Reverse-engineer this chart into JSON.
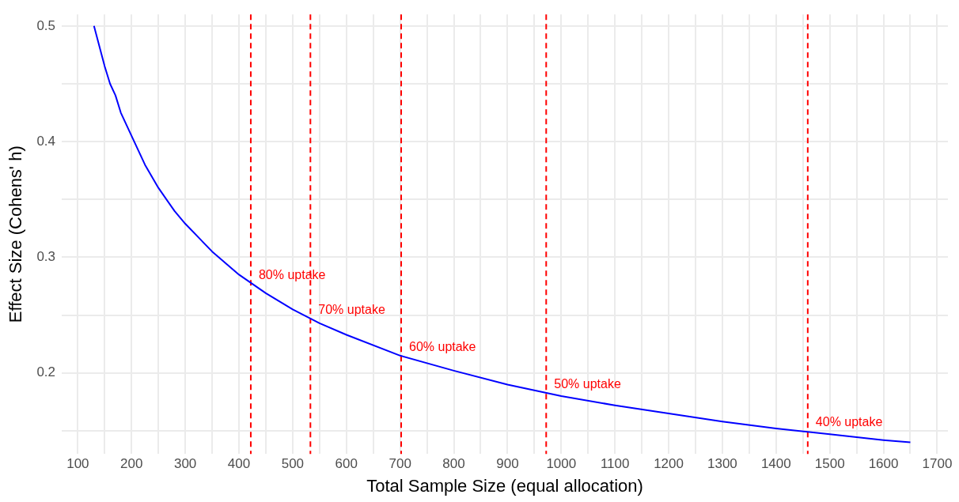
{
  "chart_data": {
    "type": "line",
    "xlabel": "Total Sample Size (equal allocation)",
    "ylabel": "Effect Size (Cohens' h)",
    "x": [
      130,
      150,
      160,
      170,
      180,
      200,
      225,
      250,
      280,
      300,
      350,
      400,
      450,
      500,
      550,
      600,
      700,
      800,
      900,
      1000,
      1100,
      1200,
      1300,
      1400,
      1500,
      1600,
      1650
    ],
    "series": [
      {
        "color": "#0000ff",
        "values": [
          0.5,
          0.465,
          0.45,
          0.44,
          0.425,
          0.405,
          0.38,
          0.36,
          0.34,
          0.329,
          0.305,
          0.285,
          0.269,
          0.255,
          0.243,
          0.233,
          0.215,
          0.202,
          0.19,
          0.18,
          0.172,
          0.165,
          0.158,
          0.152,
          0.147,
          0.142,
          0.14
        ]
      }
    ],
    "xlim": [
      70,
      1720
    ],
    "ylim": [
      0.13,
      0.51
    ],
    "xticks": [
      100,
      {
        "value": 150,
        "label": null
      },
      200,
      {
        "value": 250,
        "label": null
      },
      300,
      {
        "value": 350,
        "label": null
      },
      400,
      {
        "value": 450,
        "label": null
      },
      500,
      {
        "value": 550,
        "label": null
      },
      600,
      {
        "value": 650,
        "label": null
      },
      700,
      {
        "value": 750,
        "label": null
      },
      800,
      {
        "value": 850,
        "label": null
      },
      900,
      {
        "value": 950,
        "label": null
      },
      1000,
      {
        "value": 1050,
        "label": null
      },
      1100,
      {
        "value": 1150,
        "label": null
      },
      1200,
      {
        "value": 1250,
        "label": null
      },
      1300,
      {
        "value": 1350,
        "label": null
      },
      1400,
      {
        "value": 1450,
        "label": null
      },
      1500,
      {
        "value": 1550,
        "label": null
      },
      1600,
      {
        "value": 1650,
        "label": null
      },
      1700
    ],
    "yticks": [
      {
        "value": 0.15,
        "label": null
      },
      0.2,
      {
        "value": 0.25,
        "label": null
      },
      0.3,
      {
        "value": 0.35,
        "label": null
      },
      0.4,
      {
        "value": 0.45,
        "label": null
      },
      0.5
    ],
    "grid": true,
    "legend": false,
    "marker": "none",
    "line_style": "solid",
    "ref_lines": [
      {
        "axis": "x",
        "value": 422,
        "color": "#ff0000",
        "line_style": "dashed"
      },
      {
        "axis": "x",
        "value": 533,
        "color": "#ff0000",
        "line_style": "dashed"
      },
      {
        "axis": "x",
        "value": 702,
        "color": "#ff0000",
        "line_style": "dashed"
      },
      {
        "axis": "x",
        "value": 972,
        "color": "#ff0000",
        "line_style": "dashed"
      },
      {
        "axis": "x",
        "value": 1459,
        "color": "#ff0000",
        "line_style": "dashed"
      }
    ],
    "annotations": [
      {
        "text": "80% uptake",
        "x": 422,
        "y": 0.284
      },
      {
        "text": "70% uptake",
        "x": 533,
        "y": 0.254
      },
      {
        "text": "60% uptake",
        "x": 702,
        "y": 0.222
      },
      {
        "text": "50% uptake",
        "x": 972,
        "y": 0.19
      },
      {
        "text": "40% uptake",
        "x": 1459,
        "y": 0.157
      }
    ]
  }
}
